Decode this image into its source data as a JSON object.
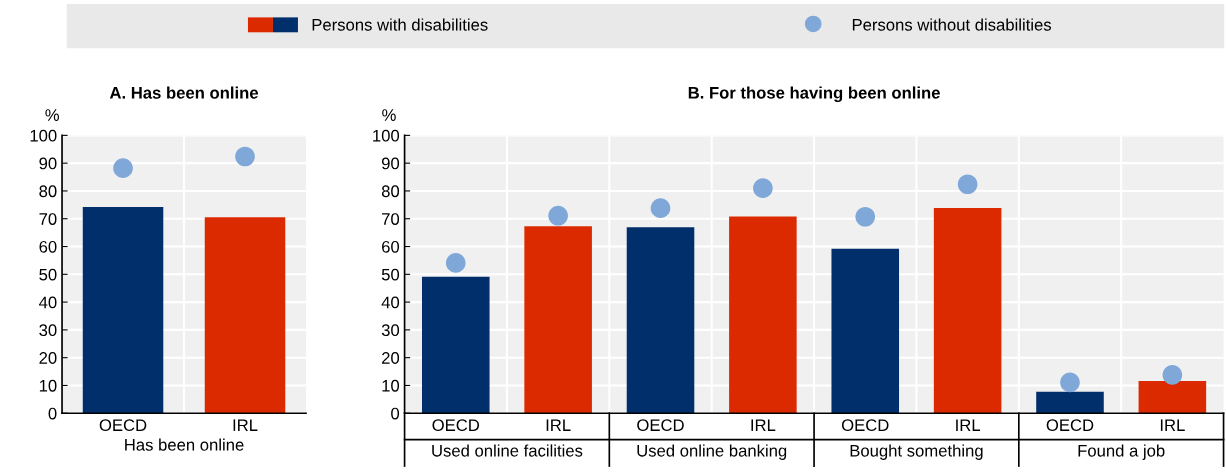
{
  "chart_data": [
    {
      "type": "bar",
      "title": "A. Has been online",
      "ylabel": "%",
      "xlabel": "Has been online",
      "categories": [
        "OECD",
        "IRL"
      ],
      "series": [
        {
          "name": "Persons with disabilities",
          "colors": [
            "#002f6c",
            "#dc2a00"
          ],
          "values": [
            74.2,
            70.5
          ]
        },
        {
          "name": "Persons without disabilities",
          "type": "scatter",
          "color": "#7fa8d9",
          "marker": "circle",
          "values": [
            88.2,
            92.4
          ]
        }
      ],
      "ylim": [
        0,
        100
      ],
      "yticks": [
        0,
        10,
        20,
        30,
        40,
        50,
        60,
        70,
        80,
        90,
        100
      ],
      "grid": true,
      "legend": "top"
    },
    {
      "type": "bar",
      "title": "B. For those having been online",
      "ylabel": "%",
      "categories": [
        "OECD",
        "IRL",
        "OECD",
        "IRL",
        "OECD",
        "IRL",
        "OECD",
        "IRL"
      ],
      "annotations": [
        "Used online facilities",
        "Used online banking",
        "Bought something",
        "Found a job"
      ],
      "series": [
        {
          "colors": [
            "#002f6c",
            "#dc2a00",
            "#002f6c",
            "#dc2a00",
            "#002f6c",
            "#dc2a00",
            "#002f6c",
            "#dc2a00"
          ],
          "values": [
            49.1,
            67.3,
            66.9,
            70.8,
            59.2,
            73.9,
            7.7,
            11.6
          ]
        },
        {
          "type": "scatter",
          "color": "#7fa8d9",
          "marker": "circle",
          "values": [
            54.1,
            71.1,
            73.8,
            81.0,
            70.7,
            82.4,
            11.1,
            13.8
          ]
        }
      ],
      "ylim": [
        0,
        100
      ],
      "yticks": [
        0,
        10,
        20,
        30,
        40,
        50,
        60,
        70,
        80,
        90,
        100
      ],
      "grid": true,
      "legend": "top"
    }
  ]
}
